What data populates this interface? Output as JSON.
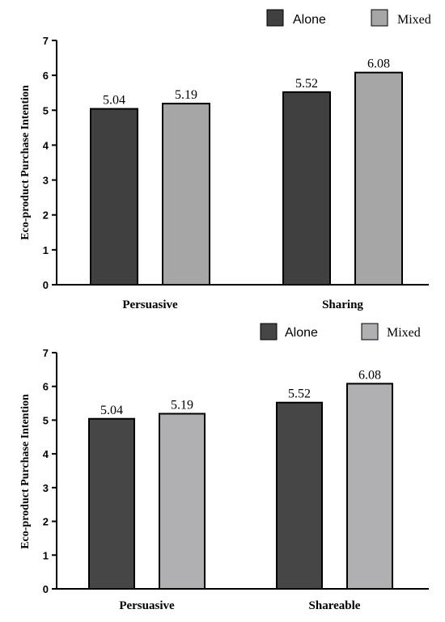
{
  "chart_data": [
    {
      "type": "bar",
      "categories": [
        "Persuasive",
        "Sharing"
      ],
      "series": [
        {
          "name": "Alone",
          "values": [
            5.04,
            5.52
          ],
          "color": "#404040"
        },
        {
          "name": "Mixed",
          "values": [
            5.19,
            6.08
          ],
          "color": "#a6a6a6"
        }
      ],
      "data_labels": [
        [
          "5.04",
          "5.52"
        ],
        [
          "5.19",
          "6.08"
        ]
      ],
      "ylabel": "Eco-product Purchase Intention",
      "xlabel": "",
      "ylim": [
        0,
        7
      ],
      "yticks": [
        "0",
        "1",
        "2",
        "3",
        "4",
        "5",
        "6",
        "7"
      ],
      "legend_position": "top-right",
      "grid": false
    },
    {
      "type": "bar",
      "categories": [
        "Persuasive",
        "Shareable"
      ],
      "series": [
        {
          "name": "Alone",
          "values": [
            5.04,
            5.52
          ],
          "color": "#464646"
        },
        {
          "name": "Mixed",
          "values": [
            5.19,
            6.08
          ],
          "color": "#b0b0b3"
        }
      ],
      "data_labels": [
        [
          "5.04",
          "5.52"
        ],
        [
          "5.19",
          "6.08"
        ]
      ],
      "ylabel": "Eco-product Purchase Intention",
      "xlabel": "",
      "ylim": [
        0,
        7
      ],
      "yticks": [
        "0",
        "1",
        "2",
        "3",
        "4",
        "5",
        "6",
        "7"
      ],
      "legend_position": "top-right",
      "grid": false
    }
  ]
}
